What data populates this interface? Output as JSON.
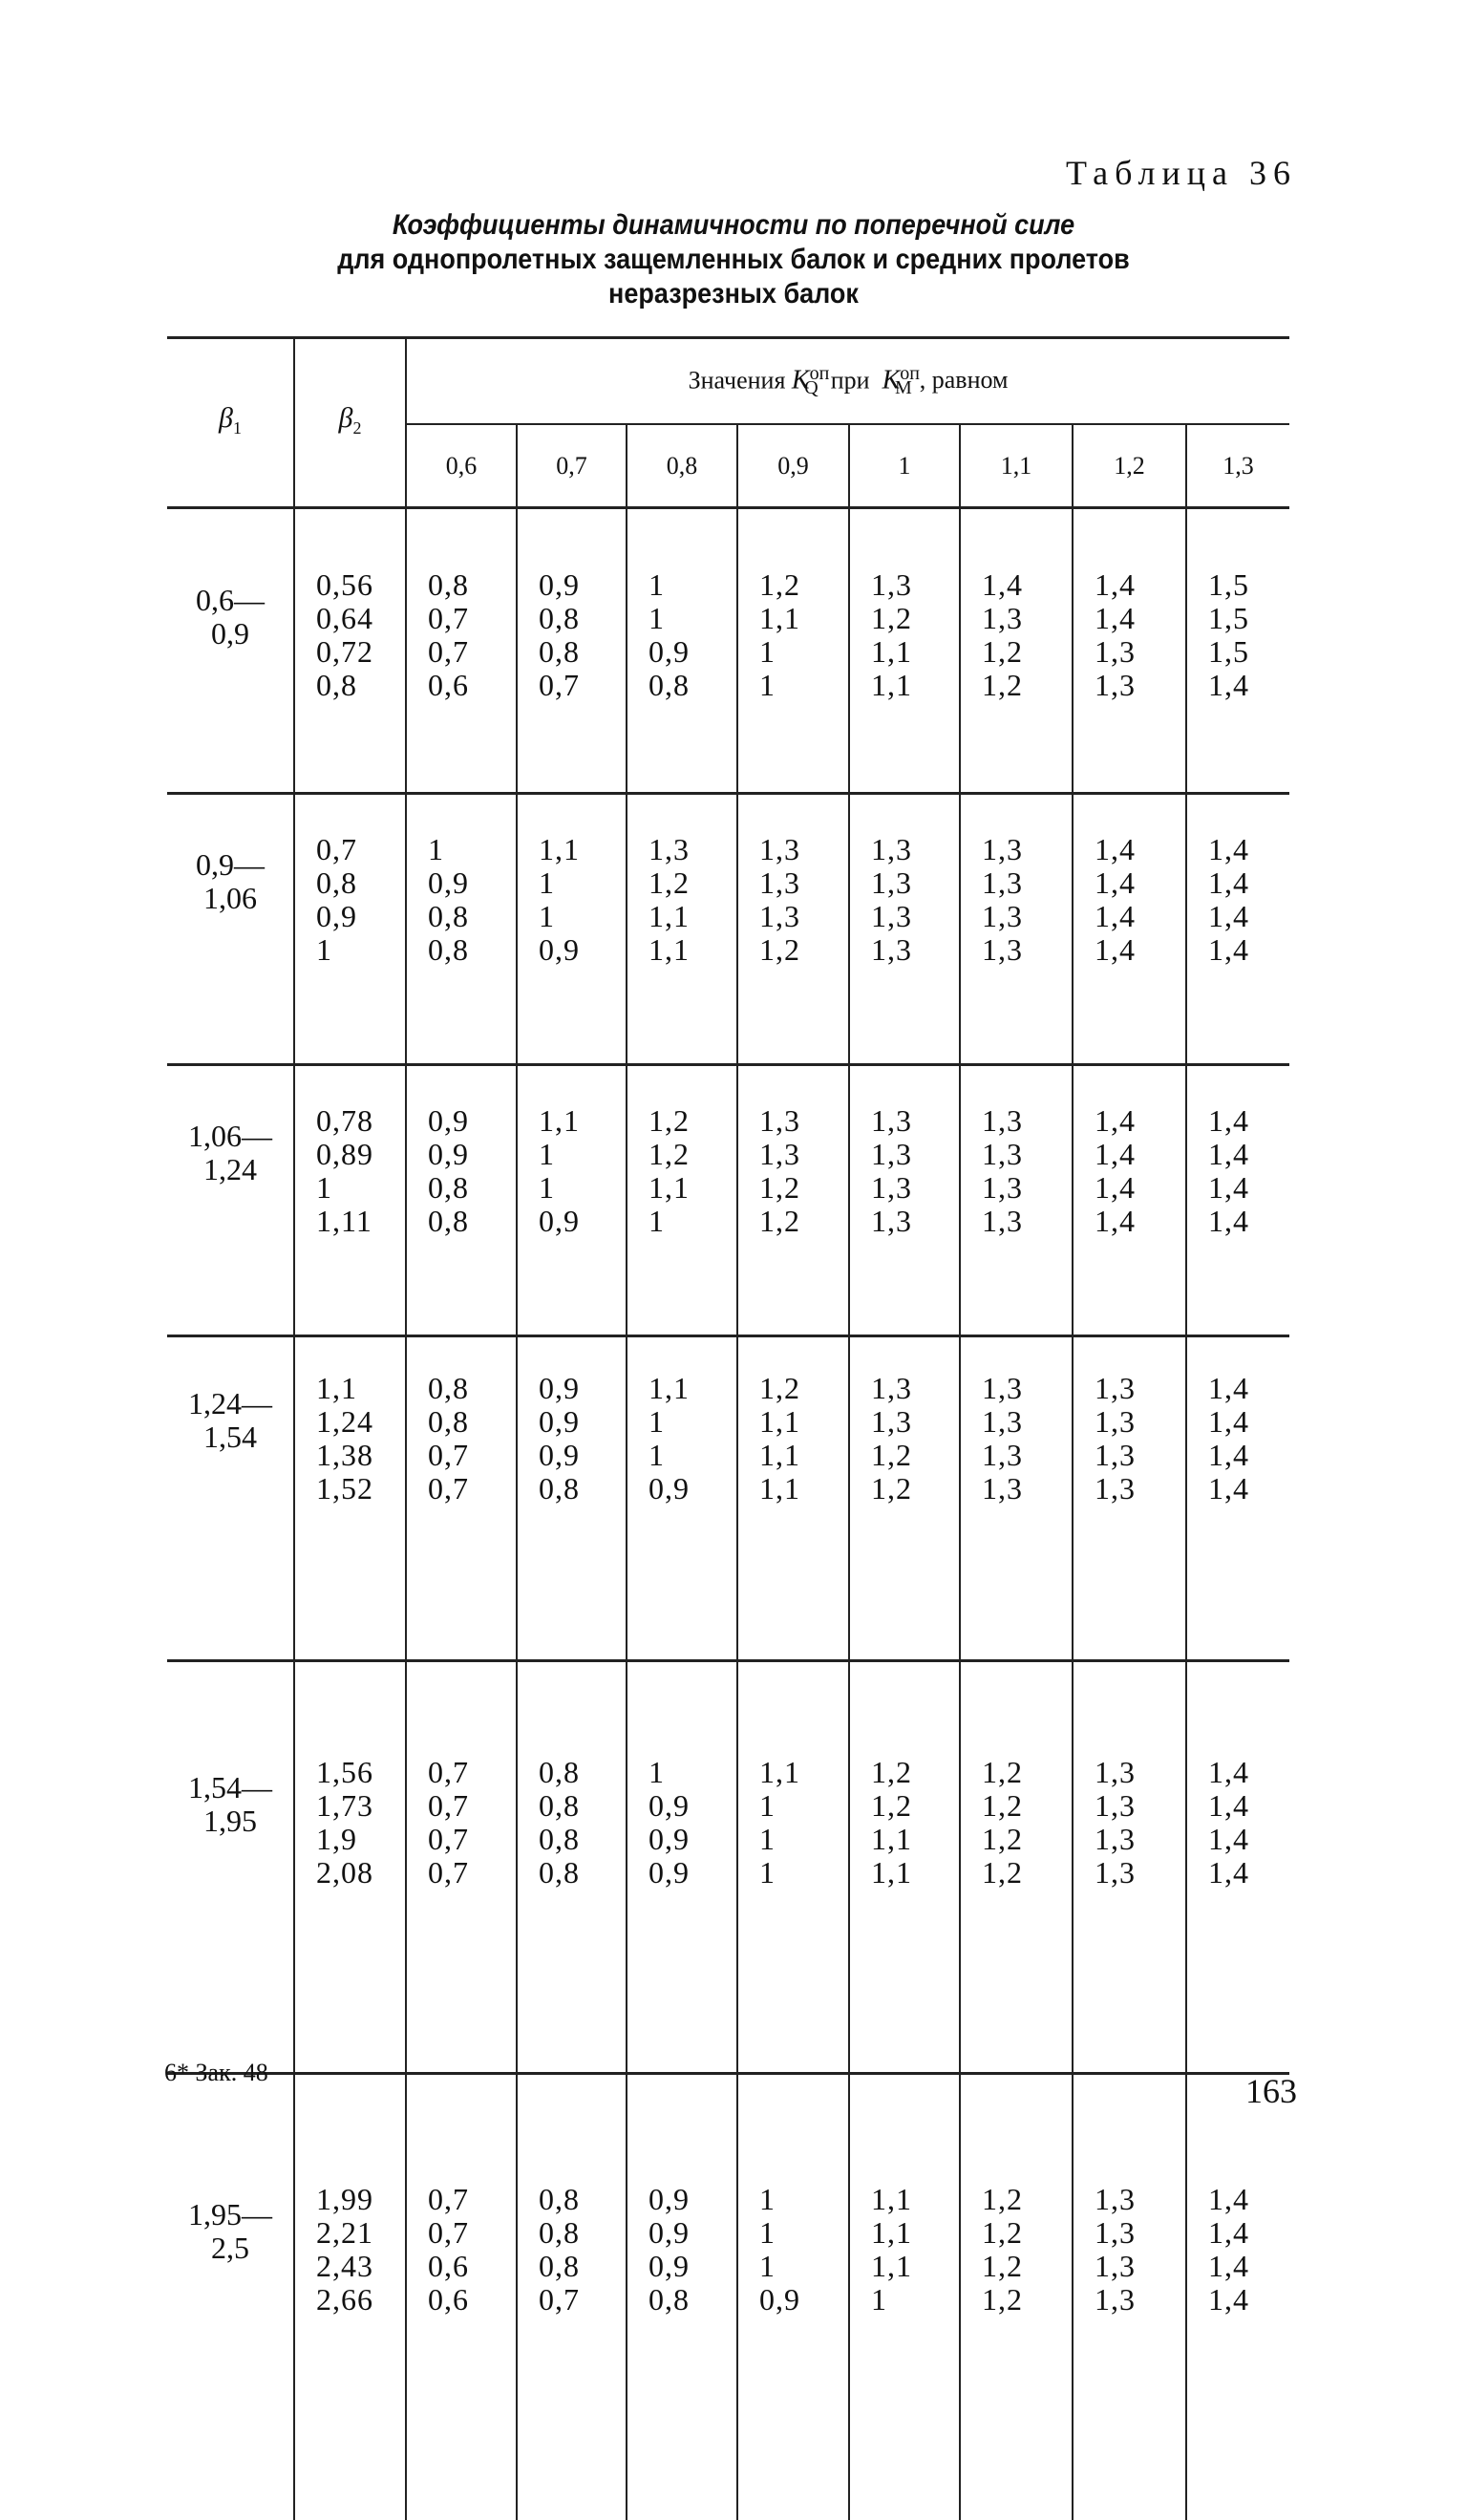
{
  "table_label": "Таблица 36",
  "title": [
    "Коэффициенты динамичности по поперечной силе",
    "для однопролетных защемленных балок и средних пролетов",
    "неразрезных балок"
  ],
  "header": {
    "beta1": "β",
    "beta1_sub": "1",
    "beta2": "β",
    "beta2_sub": "2",
    "group": {
      "prefix": "Значения",
      "kq": "K",
      "kq_sup": "оп",
      "kq_sub": "Q",
      "mid": "при",
      "km": "K",
      "km_sup": "оп",
      "km_sub": "М",
      "suffix": ", равном"
    },
    "km_values": [
      "0,6",
      "0,7",
      "0,8",
      "0,9",
      "1",
      "1,1",
      "1,2",
      "1,3"
    ]
  },
  "blocks": [
    {
      "beta1": [
        "0,6—",
        "0,9"
      ],
      "beta2": [
        "0,56",
        "0,64",
        "0,72",
        "0,8"
      ],
      "kq": [
        [
          "0,8",
          "0,7",
          "0,7",
          "0,6"
        ],
        [
          "0,9",
          "0,8",
          "0,8",
          "0,7"
        ],
        [
          "1",
          "1",
          "0,9",
          "0,8"
        ],
        [
          "1,2",
          "1,1",
          "1",
          "1"
        ],
        [
          "1,3",
          "1,2",
          "1,1",
          "1,1"
        ],
        [
          "1,4",
          "1,3",
          "1,2",
          "1,2"
        ],
        [
          "1,4",
          "1,4",
          "1,3",
          "1,3"
        ],
        [
          "1,5",
          "1,5",
          "1,5",
          "1,4"
        ]
      ]
    },
    {
      "beta1": [
        "0,9—",
        "1,06"
      ],
      "beta2": [
        "0,7",
        "0,8",
        "0,9",
        "1"
      ],
      "kq": [
        [
          "1",
          "0,9",
          "0,8",
          "0,8"
        ],
        [
          "1,1",
          "1",
          "1",
          "0,9"
        ],
        [
          "1,3",
          "1,2",
          "1,1",
          "1,1"
        ],
        [
          "1,3",
          "1,3",
          "1,3",
          "1,2"
        ],
        [
          "1,3",
          "1,3",
          "1,3",
          "1,3"
        ],
        [
          "1,3",
          "1,3",
          "1,3",
          "1,3"
        ],
        [
          "1,4",
          "1,4",
          "1,4",
          "1,4"
        ],
        [
          "1,4",
          "1,4",
          "1,4",
          "1,4"
        ]
      ]
    },
    {
      "beta1": [
        "1,06—",
        "1,24"
      ],
      "beta2": [
        "0,78",
        "0,89",
        "1",
        "1,11"
      ],
      "kq": [
        [
          "0,9",
          "0,9",
          "0,8",
          "0,8"
        ],
        [
          "1,1",
          "1",
          "1",
          "0,9"
        ],
        [
          "1,2",
          "1,2",
          "1,1",
          "1"
        ],
        [
          "1,3",
          "1,3",
          "1,2",
          "1,2"
        ],
        [
          "1,3",
          "1,3",
          "1,3",
          "1,3"
        ],
        [
          "1,3",
          "1,3",
          "1,3",
          "1,3"
        ],
        [
          "1,4",
          "1,4",
          "1,4",
          "1,4"
        ],
        [
          "1,4",
          "1,4",
          "1,4",
          "1,4"
        ]
      ]
    },
    {
      "beta1": [
        "1,24—",
        "1,54"
      ],
      "beta2": [
        "1,1",
        "1,24",
        "1,38",
        "1,52"
      ],
      "kq": [
        [
          "0,8",
          "0,8",
          "0,7",
          "0,7"
        ],
        [
          "0,9",
          "0,9",
          "0,9",
          "0,8"
        ],
        [
          "1,1",
          "1",
          "1",
          "0,9"
        ],
        [
          "1,2",
          "1,1",
          "1,1",
          "1,1"
        ],
        [
          "1,3",
          "1,3",
          "1,2",
          "1,2"
        ],
        [
          "1,3",
          "1,3",
          "1,3",
          "1,3"
        ],
        [
          "1,3",
          "1,3",
          "1,3",
          "1,3"
        ],
        [
          "1,4",
          "1,4",
          "1,4",
          "1,4"
        ]
      ]
    },
    {
      "beta1": [
        "1,54—",
        "1,95"
      ],
      "beta2": [
        "1,56",
        "1,73",
        "1,9",
        "2,08"
      ],
      "kq": [
        [
          "0,7",
          "0,7",
          "0,7",
          "0,7"
        ],
        [
          "0,8",
          "0,8",
          "0,8",
          "0,8"
        ],
        [
          "1",
          "0,9",
          "0,9",
          "0,9"
        ],
        [
          "1,1",
          "1",
          "1",
          "1"
        ],
        [
          "1,2",
          "1,2",
          "1,1",
          "1,1"
        ],
        [
          "1,2",
          "1,2",
          "1,2",
          "1,2"
        ],
        [
          "1,3",
          "1,3",
          "1,3",
          "1,3"
        ],
        [
          "1,4",
          "1,4",
          "1,4",
          "1,4"
        ]
      ]
    },
    {
      "beta1": [
        "1,95—",
        "2,5"
      ],
      "beta2": [
        "1,99",
        "2,21",
        "2,43",
        "2,66"
      ],
      "kq": [
        [
          "0,7",
          "0,7",
          "0,6",
          "0,6"
        ],
        [
          "0,8",
          "0,8",
          "0,8",
          "0,7"
        ],
        [
          "0,9",
          "0,9",
          "0,9",
          "0,8"
        ],
        [
          "1",
          "1",
          "1",
          "0,9"
        ],
        [
          "1,1",
          "1,1",
          "1,1",
          "1"
        ],
        [
          "1,2",
          "1,2",
          "1,2",
          "1,2"
        ],
        [
          "1,3",
          "1,3",
          "1,3",
          "1,3"
        ],
        [
          "1,4",
          "1,4",
          "1,4",
          "1,4"
        ]
      ]
    }
  ],
  "footer": {
    "signature": "6* Зак. 48",
    "page_number": "163"
  }
}
